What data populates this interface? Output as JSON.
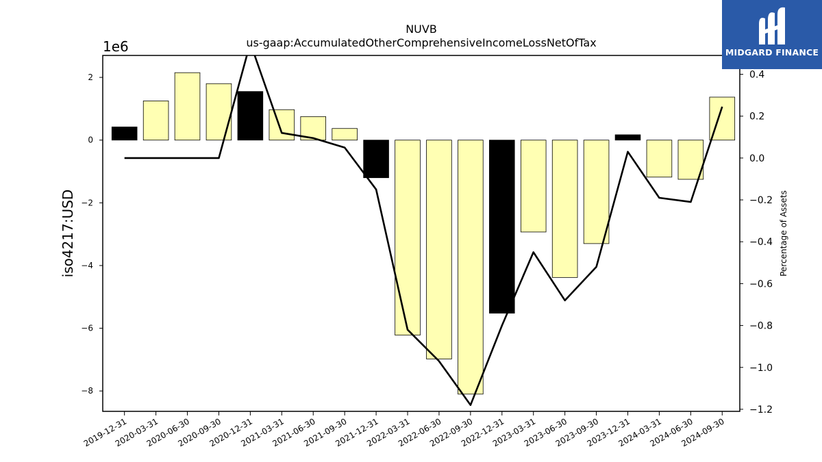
{
  "chart_data": {
    "type": "bar",
    "title": "NUVB",
    "subtitle": "us-gaap:AccumulatedOtherComprehensiveIncomeLossNetOfTax",
    "ylabel": "iso4217:USD",
    "y_multiplier_label": "1e6",
    "ylabel_right": "Percentage of Assets",
    "categories": [
      "2019-12-31",
      "2020-03-31",
      "2020-06-30",
      "2020-09-30",
      "2020-12-31",
      "2021-03-31",
      "2021-06-30",
      "2021-09-30",
      "2021-12-31",
      "2022-03-31",
      "2022-06-30",
      "2022-09-30",
      "2022-12-31",
      "2023-03-31",
      "2023-06-30",
      "2023-09-30",
      "2023-12-31",
      "2024-03-31",
      "2024-06-30",
      "2024-09-30"
    ],
    "values": [
      0.42,
      1.25,
      2.15,
      1.8,
      1.55,
      0.97,
      0.75,
      0.37,
      -1.2,
      -6.22,
      -6.98,
      -8.1,
      -5.52,
      -2.93,
      -4.38,
      -3.3,
      0.17,
      -1.18,
      -1.25,
      1.37
    ],
    "bar_colors": [
      "#000000",
      "#ffffb3",
      "#ffffb3",
      "#ffffb3",
      "#000000",
      "#ffffb3",
      "#ffffb3",
      "#ffffb3",
      "#000000",
      "#ffffb3",
      "#ffffb3",
      "#ffffb3",
      "#000000",
      "#ffffb3",
      "#ffffb3",
      "#ffffb3",
      "#000000",
      "#ffffb3",
      "#ffffb3",
      "#ffffb3"
    ],
    "line_values": [
      0.0,
      0.0,
      0.0,
      0.0,
      0.55,
      0.12,
      0.095,
      0.05,
      -0.15,
      -0.82,
      -0.97,
      -1.18,
      -0.8,
      -0.45,
      -0.68,
      -0.52,
      0.03,
      -0.19,
      -0.21,
      0.245
    ],
    "ylim": [
      -8.65,
      2.7
    ],
    "ylim_right": [
      -1.21,
      0.49
    ],
    "yticks": [
      "2",
      "0",
      "−2",
      "−4",
      "−6",
      "−8"
    ],
    "yticks_values": [
      2,
      0,
      -2,
      -4,
      -6,
      -8
    ],
    "yticks_right": [
      "0.4",
      "0.2",
      "0.0",
      "−0.2",
      "−0.4",
      "−0.6",
      "−0.8",
      "−1.0",
      "−1.2"
    ],
    "yticks_right_values": [
      0.4,
      0.2,
      0.0,
      -0.2,
      -0.4,
      -0.6,
      -0.8,
      -1.0,
      -1.2
    ],
    "colors": {
      "bar_fill": "#ffffb3",
      "bar_highlight": "#000000",
      "line": "#000000"
    },
    "grid": false
  },
  "logo": {
    "text": "MIDGARD FINANCE",
    "background": "#2a5aa8"
  }
}
